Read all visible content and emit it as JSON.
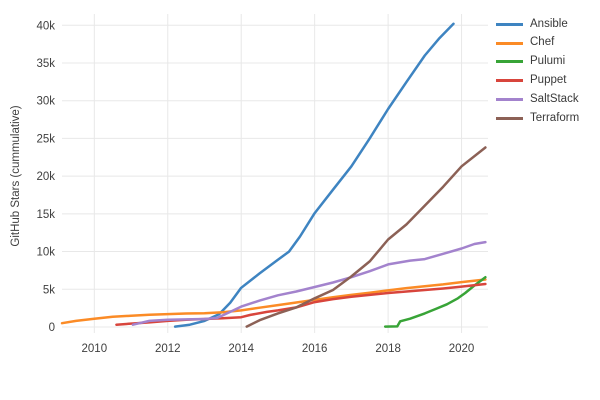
{
  "figure_title": "",
  "y_axis_title": "GitHub Stars (cummulative)",
  "chart_data": {
    "type": "line",
    "title": "",
    "xlabel": "",
    "ylabel": "GitHub Stars (cummulative)",
    "units": "stars in thousands (k)",
    "grid": true,
    "legend_position": "top-right-outside",
    "xlim": [
      2009.12,
      2020.72
    ],
    "ylim_k": [
      -0.8,
      41.5
    ],
    "x_ticks": [
      {
        "value": 2010,
        "label": "2010"
      },
      {
        "value": 2012,
        "label": "2012"
      },
      {
        "value": 2014,
        "label": "2014"
      },
      {
        "value": 2016,
        "label": "2016"
      },
      {
        "value": 2018,
        "label": "2018"
      },
      {
        "value": 2020,
        "label": "2020"
      }
    ],
    "y_ticks": [
      {
        "value": 0,
        "label": "0"
      },
      {
        "value": 5,
        "label": "5k"
      },
      {
        "value": 10,
        "label": "10k"
      },
      {
        "value": 15,
        "label": "15k"
      },
      {
        "value": 20,
        "label": "20k"
      },
      {
        "value": 25,
        "label": "25k"
      },
      {
        "value": 30,
        "label": "30k"
      },
      {
        "value": 35,
        "label": "35k"
      },
      {
        "value": 40,
        "label": "40k"
      }
    ],
    "series": [
      {
        "name": "Ansible",
        "color": "#3e84c1",
        "points": [
          [
            2012.2,
            0.05
          ],
          [
            2012.6,
            0.3
          ],
          [
            2013.0,
            0.8
          ],
          [
            2013.4,
            1.7
          ],
          [
            2013.7,
            3.2
          ],
          [
            2014.0,
            5.2
          ],
          [
            2014.5,
            7.1
          ],
          [
            2015.0,
            8.9
          ],
          [
            2015.3,
            10.0
          ],
          [
            2015.6,
            12.0
          ],
          [
            2016.0,
            15.1
          ],
          [
            2016.5,
            18.2
          ],
          [
            2017.0,
            21.3
          ],
          [
            2017.5,
            25.0
          ],
          [
            2018.0,
            28.9
          ],
          [
            2018.5,
            32.5
          ],
          [
            2019.0,
            36.0
          ],
          [
            2019.4,
            38.3
          ],
          [
            2019.78,
            40.2
          ]
        ]
      },
      {
        "name": "Chef",
        "color": "#fb8b26",
        "points": [
          [
            2009.12,
            0.5
          ],
          [
            2009.5,
            0.8
          ],
          [
            2010.0,
            1.1
          ],
          [
            2010.5,
            1.35
          ],
          [
            2011.0,
            1.5
          ],
          [
            2011.5,
            1.62
          ],
          [
            2012.0,
            1.7
          ],
          [
            2012.5,
            1.78
          ],
          [
            2013.0,
            1.82
          ],
          [
            2013.5,
            1.95
          ],
          [
            2014.0,
            2.2
          ],
          [
            2014.5,
            2.55
          ],
          [
            2015.0,
            2.9
          ],
          [
            2015.5,
            3.25
          ],
          [
            2016.0,
            3.6
          ],
          [
            2016.5,
            3.95
          ],
          [
            2017.0,
            4.25
          ],
          [
            2017.5,
            4.55
          ],
          [
            2018.0,
            4.85
          ],
          [
            2018.5,
            5.15
          ],
          [
            2019.0,
            5.4
          ],
          [
            2019.5,
            5.65
          ],
          [
            2020.0,
            5.95
          ],
          [
            2020.65,
            6.3
          ]
        ]
      },
      {
        "name": "Pulumi",
        "color": "#38a437",
        "points": [
          [
            2017.92,
            0.05
          ],
          [
            2018.25,
            0.08
          ],
          [
            2018.33,
            0.75
          ],
          [
            2018.6,
            1.1
          ],
          [
            2019.0,
            1.8
          ],
          [
            2019.3,
            2.4
          ],
          [
            2019.6,
            3.0
          ],
          [
            2019.9,
            3.8
          ],
          [
            2020.1,
            4.5
          ],
          [
            2020.35,
            5.5
          ],
          [
            2020.65,
            6.6
          ]
        ]
      },
      {
        "name": "Puppet",
        "color": "#d8453c",
        "points": [
          [
            2010.6,
            0.3
          ],
          [
            2011.0,
            0.45
          ],
          [
            2011.5,
            0.6
          ],
          [
            2012.0,
            0.8
          ],
          [
            2012.5,
            0.95
          ],
          [
            2013.0,
            1.05
          ],
          [
            2013.5,
            1.15
          ],
          [
            2014.0,
            1.3
          ],
          [
            2014.25,
            1.6
          ],
          [
            2014.7,
            2.0
          ],
          [
            2015.0,
            2.2
          ],
          [
            2015.5,
            2.6
          ],
          [
            2016.0,
            3.3
          ],
          [
            2016.5,
            3.7
          ],
          [
            2017.0,
            4.0
          ],
          [
            2017.5,
            4.25
          ],
          [
            2018.0,
            4.5
          ],
          [
            2018.5,
            4.7
          ],
          [
            2019.0,
            4.9
          ],
          [
            2019.5,
            5.1
          ],
          [
            2020.0,
            5.35
          ],
          [
            2020.65,
            5.7
          ]
        ]
      },
      {
        "name": "SaltStack",
        "color": "#a383cd",
        "points": [
          [
            2011.05,
            0.3
          ],
          [
            2011.5,
            0.8
          ],
          [
            2012.0,
            0.95
          ],
          [
            2012.5,
            1.0
          ],
          [
            2013.0,
            1.05
          ],
          [
            2013.35,
            1.2
          ],
          [
            2013.7,
            2.0
          ],
          [
            2014.0,
            2.7
          ],
          [
            2014.5,
            3.5
          ],
          [
            2015.0,
            4.2
          ],
          [
            2015.5,
            4.7
          ],
          [
            2016.0,
            5.3
          ],
          [
            2016.5,
            5.9
          ],
          [
            2017.0,
            6.6
          ],
          [
            2017.5,
            7.4
          ],
          [
            2018.0,
            8.3
          ],
          [
            2018.6,
            8.8
          ],
          [
            2019.0,
            9.0
          ],
          [
            2019.5,
            9.7
          ],
          [
            2020.0,
            10.4
          ],
          [
            2020.35,
            11.0
          ],
          [
            2020.65,
            11.25
          ]
        ]
      },
      {
        "name": "Terraform",
        "color": "#8c6156",
        "points": [
          [
            2014.15,
            0.05
          ],
          [
            2014.5,
            0.9
          ],
          [
            2015.0,
            1.8
          ],
          [
            2015.5,
            2.6
          ],
          [
            2016.0,
            3.8
          ],
          [
            2016.5,
            4.9
          ],
          [
            2017.0,
            6.7
          ],
          [
            2017.5,
            8.7
          ],
          [
            2018.0,
            11.6
          ],
          [
            2018.5,
            13.6
          ],
          [
            2019.0,
            16.1
          ],
          [
            2019.5,
            18.6
          ],
          [
            2020.0,
            21.3
          ],
          [
            2020.65,
            23.8
          ]
        ]
      }
    ]
  }
}
